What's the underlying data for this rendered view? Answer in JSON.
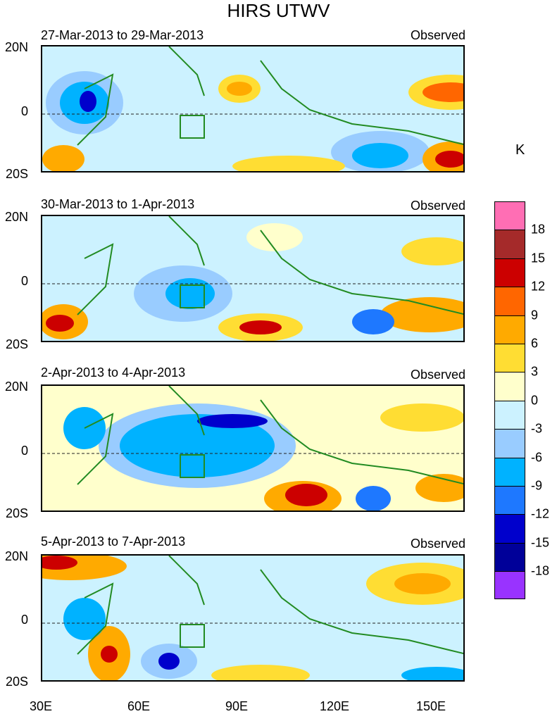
{
  "title": "HIRS UTWV",
  "panels": [
    {
      "dates": "27-Mar-2013 to 29-Mar-2013",
      "source": "Observed"
    },
    {
      "dates": "30-Mar-2013 to 1-Apr-2013",
      "source": "Observed"
    },
    {
      "dates": "2-Apr-2013 to 4-Apr-2013",
      "source": "Observed"
    },
    {
      "dates": "5-Apr-2013 to 7-Apr-2013",
      "source": "Observed"
    }
  ],
  "lat_labels": [
    "20N",
    "0",
    "20S"
  ],
  "lon_labels": [
    "30E",
    "60E",
    "90E",
    "120E",
    "150E"
  ],
  "colorbar": {
    "unit": "K",
    "levels": [
      "18",
      "15",
      "12",
      "9",
      "6",
      "3",
      "0",
      "-3",
      "-6",
      "-9",
      "-12",
      "-15",
      "-18"
    ],
    "colors": [
      "#ff6eb4",
      "#a52a2a",
      "#cc0000",
      "#ff6600",
      "#ffaa00",
      "#ffdd33",
      "#ffffcc",
      "#ccf2ff",
      "#99ccff",
      "#00b2ff",
      "#1e78ff",
      "#0000cc",
      "#000099",
      "#9933ff"
    ]
  }
}
